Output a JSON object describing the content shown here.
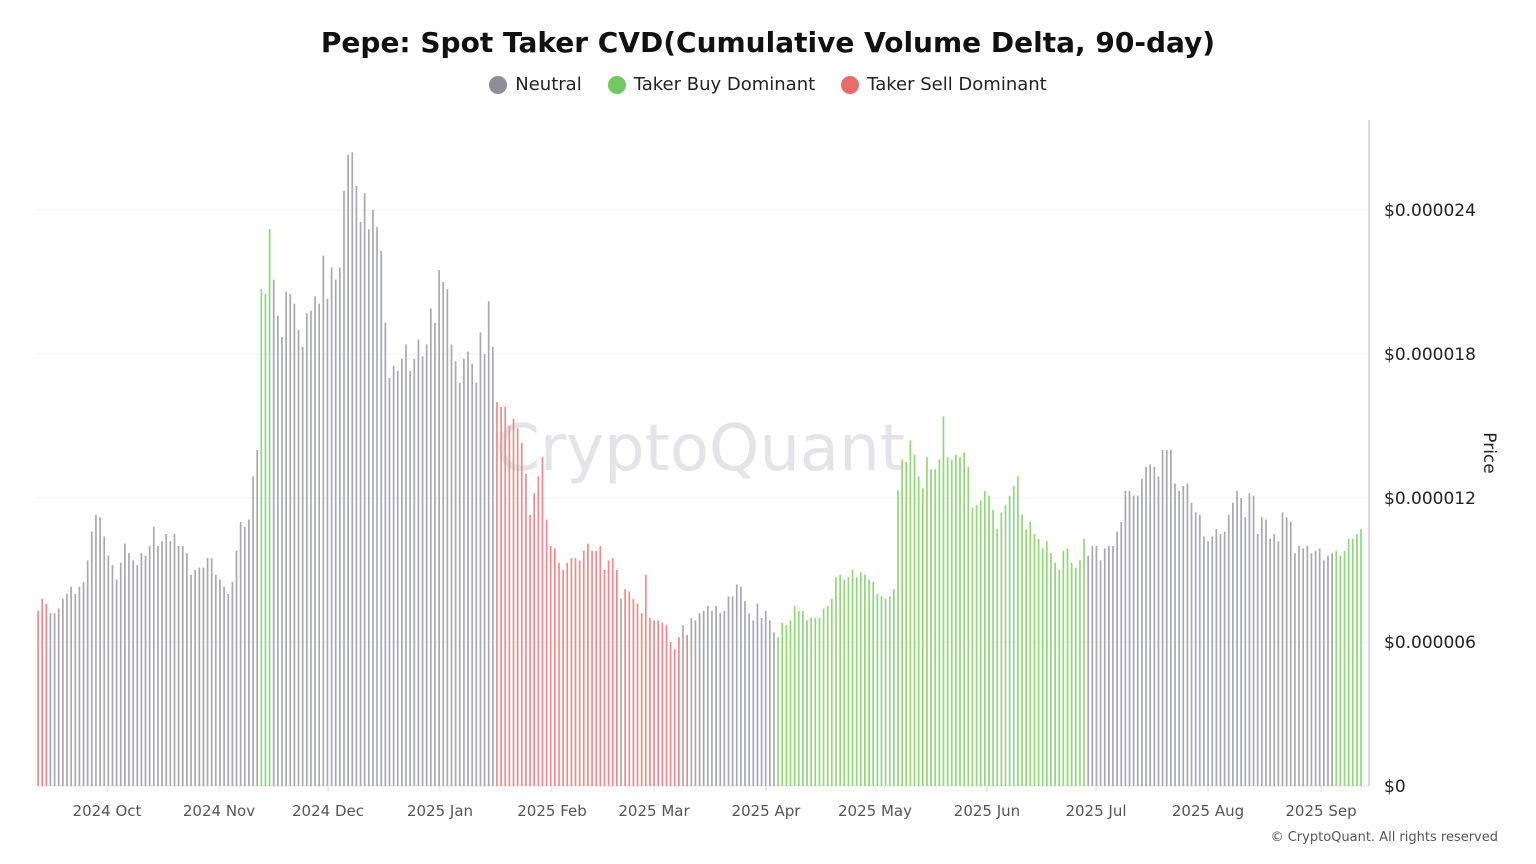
{
  "chart_data": {
    "type": "bar",
    "title": "Pepe: Spot Taker CVD(Cumulative Volume Delta, 90-day)",
    "ylabel": "Price",
    "xlabel": "",
    "ylim": [
      0,
      2.75e-05
    ],
    "y_ticks": [
      {
        "value": 0,
        "label": "$0"
      },
      {
        "value": 6e-06,
        "label": "$0.000006"
      },
      {
        "value": 1.2e-05,
        "label": "$0.000012"
      },
      {
        "value": 1.8e-05,
        "label": "$0.000018"
      },
      {
        "value": 2.4e-05,
        "label": "$0.000024"
      }
    ],
    "x_ticks": [
      "2024 Oct",
      "2024 Nov",
      "2024 Dec",
      "2025 Jan",
      "2025 Feb",
      "2025 Mar",
      "2025 Apr",
      "2025 May",
      "2025 Jun",
      "2025 Jul",
      "2025 Aug",
      "2025 Sep"
    ],
    "grid": true,
    "legend_position": "top-center",
    "legend": [
      {
        "key": "neutral",
        "label": "Neutral",
        "color": "#8e8e98"
      },
      {
        "key": "buy",
        "label": "Taker Buy Dominant",
        "color": "#72c95f"
      },
      {
        "key": "sell",
        "label": "Taker Sell Dominant",
        "color": "#e96b6b"
      }
    ],
    "bar_colors": {
      "neutral": "#a8a8b4",
      "buy": "#93d67a",
      "sell": "#f08a8a"
    },
    "segments": [
      {
        "regime": "sell",
        "values": [
          7.3e-06,
          7.8e-06,
          7.6e-06
        ]
      },
      {
        "regime": "neutral",
        "values": [
          7.2e-06,
          7.2e-06,
          7.4e-06,
          7.8e-06,
          8e-06,
          8.3e-06,
          8e-06,
          8.3e-06,
          8.5e-06,
          9.4e-06,
          1.06e-05,
          1.13e-05,
          1.12e-05,
          1.04e-05,
          9.6e-06,
          9.2e-06,
          8.6e-06,
          9.3e-06,
          1.01e-05,
          9.7e-06,
          9.4e-06,
          9.2e-06,
          9.7e-06,
          9.6e-06,
          1e-05,
          1.08e-05,
          1e-05,
          1.02e-05,
          1.05e-05,
          1.02e-05,
          1.05e-05,
          1e-05,
          1e-05,
          9.7e-06,
          8.8e-06,
          9e-06,
          9.1e-06,
          9.1e-06,
          9.5e-06,
          9.5e-06,
          8.8e-06,
          8.6e-06,
          8.3e-06,
          8e-06,
          8.5e-06,
          9.8e-06,
          1.1e-05,
          1.08e-05,
          1.11e-05,
          1.29e-05,
          1.4e-05
        ]
      },
      {
        "regime": "buy",
        "values": [
          2.07e-05,
          2.05e-05,
          2.32e-05
        ]
      },
      {
        "regime": "neutral",
        "values": [
          2.11e-05,
          1.96e-05,
          1.87e-05,
          2.06e-05,
          2.05e-05,
          2.01e-05,
          1.9e-05,
          1.83e-05,
          1.97e-05,
          1.98e-05,
          2.04e-05,
          2.01e-05,
          2.21e-05,
          2.03e-05,
          2.16e-05,
          2.11e-05,
          2.16e-05,
          2.48e-05,
          2.63e-05,
          2.64e-05,
          2.5e-05,
          2.35e-05,
          2.47e-05,
          2.32e-05,
          2.4e-05,
          2.33e-05,
          2.23e-05,
          1.93e-05,
          1.7e-05,
          1.75e-05,
          1.73e-05,
          1.78e-05,
          1.84e-05,
          1.73e-05,
          1.78e-05,
          1.86e-05,
          1.79e-05,
          1.84e-05,
          1.99e-05,
          1.93e-05,
          2.15e-05,
          2.1e-05,
          2.07e-05,
          1.84e-05,
          1.77e-05,
          1.68e-05,
          1.78e-05,
          1.81e-05,
          1.76e-05,
          1.68e-05,
          1.89e-05,
          1.8e-05,
          2.02e-05,
          1.83e-05
        ]
      },
      {
        "regime": "sell",
        "values": [
          1.6e-05,
          1.58e-05,
          1.58e-05,
          1.5e-05,
          1.53e-05,
          1.49e-05,
          1.43e-05,
          1.3e-05,
          1.13e-05,
          1.22e-05,
          1.29e-05,
          1.37e-05,
          1.11e-05,
          1e-05,
          9.9e-06,
          9.3e-06,
          9e-06,
          9.3e-06,
          9.5e-06,
          9.5e-06,
          9.4e-06,
          9.8e-06,
          1.01e-05,
          9.8e-06,
          9.8e-06,
          1e-05,
          9e-06,
          9.4e-06,
          9.5e-06,
          9e-06
        ]
      },
      {
        "regime": "neutral",
        "values": [
          7.8e-06
        ]
      },
      {
        "regime": "sell",
        "values": [
          8.2e-06,
          8.1e-06,
          7.8e-06,
          7.6e-06,
          7.2e-06,
          8.8e-06,
          7e-06,
          6.9e-06,
          6.9e-06,
          6.8e-06,
          6.7e-06,
          6e-06,
          5.7e-06,
          6.2e-06
        ]
      },
      {
        "regime": "neutral",
        "values": [
          6.7e-06
        ]
      },
      {
        "regime": "sell",
        "values": [
          6.3e-06
        ]
      },
      {
        "regime": "neutral",
        "values": [
          7e-06,
          6.9e-06,
          7.2e-06,
          7.3e-06,
          7.5e-06,
          7.3e-06,
          7.5e-06,
          7.2e-06,
          7.3e-06,
          7.9e-06,
          7.9e-06,
          8.4e-06,
          8.3e-06,
          7.7e-06,
          7.2e-06,
          6.9e-06,
          7.6e-06,
          7e-06,
          7.3e-06,
          6.9e-06,
          6.4e-06
        ]
      },
      {
        "regime": "buy",
        "values": [
          6.2e-06,
          6.8e-06,
          6.7e-06,
          6.9e-06,
          7.5e-06,
          7.3e-06,
          7.3e-06,
          6.9e-06,
          7e-06,
          7e-06,
          7e-06,
          7.4e-06,
          7.5e-06,
          7.8e-06,
          8.7e-06,
          8.8e-06,
          8.6e-06,
          8.7e-06,
          9e-06,
          8.7e-06,
          8.9e-06,
          8.8e-06,
          8.6e-06,
          8.5e-06,
          8e-06,
          7.9e-06,
          7.8e-06,
          7.9e-06,
          8.2e-06,
          1.23e-05,
          1.36e-05,
          1.35e-05,
          1.44e-05,
          1.38e-05,
          1.29e-05,
          1.24e-05,
          1.37e-05,
          1.32e-05,
          1.32e-05,
          1.36e-05,
          1.54e-05,
          1.37e-05,
          1.36e-05,
          1.38e-05,
          1.37e-05,
          1.39e-05,
          1.33e-05,
          1.16e-05,
          1.17e-05,
          1.19e-05,
          1.23e-05,
          1.21e-05,
          1.15e-05,
          1.07e-05,
          1.14e-05,
          1.17e-05,
          1.21e-05,
          1.25e-05,
          1.29e-05,
          1.13e-05,
          1.07e-05,
          1.1e-05,
          1.05e-05,
          1.03e-05,
          9.9e-06,
          1.02e-05,
          9.7e-06,
          9.3e-06,
          9e-06,
          9.8e-06,
          9.9e-06,
          9.3e-06,
          9.1e-06,
          9.4e-06,
          1.03e-05
        ]
      },
      {
        "regime": "neutral",
        "values": [
          9.6e-06,
          1e-05,
          1e-05,
          9.4e-06,
          9.9e-06,
          1e-05,
          1e-05,
          1.06e-05,
          1.1e-05,
          1.23e-05,
          1.23e-05,
          1.21e-05,
          1.21e-05,
          1.28e-05,
          1.33e-05,
          1.34e-05,
          1.33e-05,
          1.29e-05,
          1.4e-05,
          1.4e-05,
          1.4e-05,
          1.26e-05,
          1.23e-05,
          1.25e-05,
          1.26e-05,
          1.18e-05,
          1.14e-05,
          1.13e-05,
          1.04e-05,
          1.02e-05,
          1.04e-05,
          1.07e-05,
          1.05e-05,
          1.06e-05,
          1.13e-05,
          1.18e-05,
          1.23e-05,
          1.2e-05,
          1.12e-05,
          1.22e-05,
          1.21e-05,
          1.05e-05,
          1.12e-05,
          1.11e-05,
          1.03e-05,
          1.05e-05,
          1.02e-05,
          1.14e-05,
          1.12e-05,
          1.1e-05,
          9.7e-06,
          1e-05,
          9.9e-06,
          1e-05,
          9.7e-06,
          9.8e-06,
          9.9e-06,
          9.4e-06,
          9.6e-06,
          9.7e-06
        ]
      },
      {
        "regime": "buy",
        "values": [
          9.8e-06,
          9.6e-06,
          9.8e-06,
          1.03e-05,
          1.03e-05,
          1.05e-05,
          1.07e-05
        ]
      }
    ]
  },
  "watermark": "CryptoQuant",
  "copyright": "© CryptoQuant. All rights reserved"
}
